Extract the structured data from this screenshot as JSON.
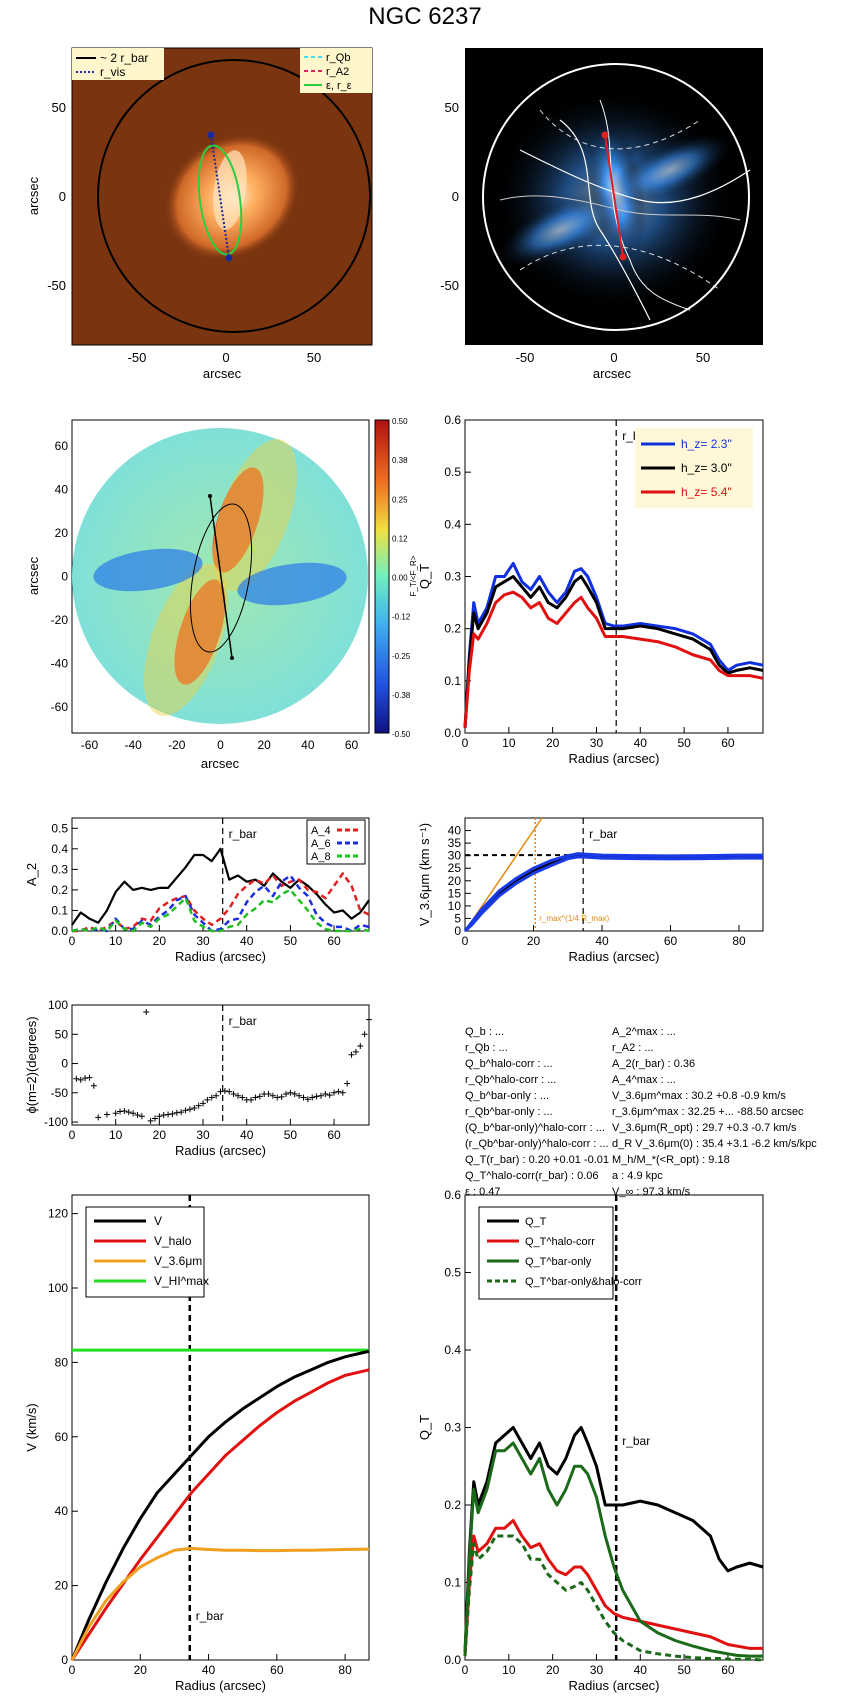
{
  "figure": {
    "title": "NGC 6237"
  },
  "panels": {
    "image": {
      "xlabel": "arcsec",
      "ylabel": "arcsec",
      "xticks": [
        "-50",
        "0",
        "50"
      ],
      "yticks": [
        "50",
        "0",
        "-50"
      ],
      "legend_left": [
        "~ 2 r_bar",
        "r_vis"
      ],
      "legend_right": [
        "r_Qb",
        "r_A2",
        "ε, r_ε"
      ],
      "colors": {
        "background": "#7a3410",
        "galaxy": "#ff9a50",
        "ellipse": "#2ecc40",
        "circle": "#000000",
        "bar_line": "#1b2a9a"
      }
    },
    "contour": {
      "xlabel": "arcsec",
      "xticks": [
        "-50",
        "0",
        "50"
      ],
      "yticks": [
        "50",
        "0",
        "-50"
      ],
      "colors": {
        "background": "#000000",
        "flux": "#3a8ef0",
        "circle": "#ffffff",
        "bar_line": "#e02020"
      }
    },
    "forcemap": {
      "xlabel": "arcsec",
      "ylabel": "arcsec",
      "xticks": [
        "-60",
        "-40",
        "-20",
        "0",
        "20",
        "40",
        "60"
      ],
      "yticks": [
        "60",
        "40",
        "20",
        "0",
        "-20",
        "-40",
        "-60"
      ],
      "colorbar_ticks": [
        "0.50",
        "0.38",
        "0.25",
        "0.12",
        "0.00",
        "-0.12",
        "-0.25",
        "-0.38",
        "-0.50"
      ],
      "colorbar_label": "F_T/<F_R>"
    },
    "rotcurve": {
      "xlabel": "Radius (arcsec)",
      "ylabel": "V_3.6μm (km s⁻¹)",
      "rbar_label": "r_bar",
      "rmax_label": "r_max^(1/4 R_max)"
    },
    "paramtext": {
      "col1": [
        "Q_b : ...",
        "r_Qb : ...",
        "Q_b^halo-corr : ...",
        "r_Qb^halo-corr : ...",
        "Q_b^bar-only : ...",
        "r_Qb^bar-only : ...",
        "(Q_b^bar-only)^halo-corr : ...",
        "(r_Qb^bar-only)^halo-corr : ...",
        "Q_T(r_bar) : 0.20 +0.01 -0.01",
        "Q_T^halo-corr(r_bar) : 0.06",
        "ε : 0.47"
      ],
      "col2": [
        "A_2^max : ...",
        "r_A2 : ...",
        "A_2(r_bar) : 0.36",
        "A_4^max : ...",
        "V_3.6μm^max : 30.2 +0.8 -0.9 km/s",
        "r_3.6μm^max : 32.25 +... -88.50 arcsec",
        "V_3.6μm(R_opt) : 29.7 +0.3 -0.7 km/s",
        "d_R V_3.6μm(0) : 35.4 +3.1 -6.2 km/s/kpc",
        "M_h/M_*(<R_opt) : 9.18",
        "a : 4.9 kpc",
        "V_∞ : 97.3 km/s"
      ]
    }
  },
  "chart_data": [
    {
      "type": "line",
      "panel": "QT profile",
      "xlabel": "Radius (arcsec)",
      "ylabel": "Q_T",
      "xlim": [
        0,
        68
      ],
      "ylim": [
        0,
        0.6
      ],
      "xticks": [
        0,
        10,
        20,
        30,
        40,
        50,
        60
      ],
      "yticks": [
        0.0,
        0.1,
        0.2,
        0.3,
        0.4,
        0.5,
        0.6
      ],
      "vline": {
        "x": 34.5,
        "label": "r_bar"
      },
      "legend": [
        "h_z= 2.3''",
        "h_z= 3.0''",
        "h_z= 5.4''"
      ],
      "x": [
        0,
        1,
        2,
        3,
        5,
        7,
        9,
        11,
        13,
        15,
        17,
        19,
        21,
        23,
        25,
        26.5,
        28,
        30,
        32,
        34,
        36,
        40,
        44,
        48,
        52,
        56,
        58,
        60,
        62,
        65,
        68
      ],
      "series": [
        {
          "name": "h_z= 2.3''",
          "color": "#1030e0",
          "values": [
            0.01,
            0.15,
            0.25,
            0.21,
            0.24,
            0.3,
            0.3,
            0.325,
            0.29,
            0.275,
            0.3,
            0.27,
            0.25,
            0.27,
            0.31,
            0.315,
            0.3,
            0.26,
            0.21,
            0.205,
            0.205,
            0.21,
            0.205,
            0.2,
            0.19,
            0.17,
            0.14,
            0.12,
            0.13,
            0.135,
            0.13
          ]
        },
        {
          "name": "h_z= 3.0''",
          "color": "#000000",
          "values": [
            0.01,
            0.14,
            0.23,
            0.2,
            0.23,
            0.28,
            0.29,
            0.3,
            0.28,
            0.26,
            0.28,
            0.25,
            0.24,
            0.26,
            0.29,
            0.3,
            0.28,
            0.25,
            0.2,
            0.2,
            0.2,
            0.205,
            0.2,
            0.19,
            0.18,
            0.16,
            0.13,
            0.115,
            0.12,
            0.125,
            0.12
          ]
        },
        {
          "name": "h_z= 5.4''",
          "color": "#e01010",
          "values": [
            0.01,
            0.12,
            0.19,
            0.18,
            0.21,
            0.25,
            0.265,
            0.27,
            0.26,
            0.24,
            0.25,
            0.22,
            0.21,
            0.23,
            0.25,
            0.26,
            0.24,
            0.22,
            0.185,
            0.185,
            0.185,
            0.18,
            0.175,
            0.165,
            0.15,
            0.14,
            0.12,
            0.11,
            0.11,
            0.11,
            0.105
          ]
        }
      ]
    },
    {
      "type": "line",
      "panel": "Fourier amplitudes",
      "xlabel": "Radius (arcsec)",
      "ylabel": "A_2",
      "xlim": [
        0,
        68
      ],
      "ylim": [
        0,
        0.55
      ],
      "xticks": [
        0,
        10,
        20,
        30,
        40,
        50,
        60
      ],
      "yticks": [
        0.0,
        0.1,
        0.2,
        0.3,
        0.4,
        0.5
      ],
      "vline": {
        "x": 34.5,
        "label": "r_bar"
      },
      "legend": [
        "A_4",
        "A_6",
        "A_8"
      ],
      "x": [
        0,
        2,
        4,
        6,
        8,
        10,
        12,
        14,
        16,
        18,
        20,
        22,
        24,
        26,
        28,
        30,
        32,
        34,
        36,
        38,
        40,
        42,
        44,
        46,
        48,
        50,
        52,
        54,
        56,
        58,
        60,
        62,
        64,
        66,
        68
      ],
      "series": [
        {
          "name": "A_2",
          "color": "#000000",
          "values": [
            0.03,
            0.09,
            0.06,
            0.04,
            0.1,
            0.19,
            0.24,
            0.2,
            0.21,
            0.2,
            0.21,
            0.21,
            0.26,
            0.31,
            0.37,
            0.37,
            0.34,
            0.4,
            0.25,
            0.27,
            0.24,
            0.25,
            0.22,
            0.28,
            0.24,
            0.21,
            0.25,
            0.22,
            0.18,
            0.13,
            0.09,
            0.1,
            0.06,
            0.09,
            0.15
          ]
        },
        {
          "name": "A_4",
          "color": "#e02020",
          "values": [
            0.0,
            0.0,
            0.02,
            0.0,
            0.02,
            0.05,
            0.01,
            0.02,
            0.06,
            0.05,
            0.11,
            0.14,
            0.16,
            0.17,
            0.1,
            0.06,
            0.03,
            0.06,
            0.11,
            0.18,
            0.22,
            0.25,
            0.23,
            0.27,
            0.22,
            0.24,
            0.25,
            0.2,
            0.19,
            0.16,
            0.22,
            0.28,
            0.22,
            0.1,
            0.08
          ]
        },
        {
          "name": "A_6",
          "color": "#1a30e0",
          "values": [
            0.0,
            0.01,
            0.0,
            0.01,
            0.0,
            0.06,
            0.01,
            0.01,
            0.05,
            0.03,
            0.07,
            0.1,
            0.15,
            0.17,
            0.08,
            0.04,
            0.0,
            0.01,
            0.05,
            0.06,
            0.14,
            0.19,
            0.22,
            0.17,
            0.24,
            0.27,
            0.21,
            0.17,
            0.08,
            0.04,
            0.02,
            0.02,
            0.0,
            0.03,
            0.02
          ]
        },
        {
          "name": "A_8",
          "color": "#20c020",
          "values": [
            0.0,
            0.01,
            0.0,
            0.02,
            0.0,
            0.05,
            0.01,
            0.0,
            0.04,
            0.02,
            0.06,
            0.08,
            0.12,
            0.16,
            0.05,
            0.02,
            0.0,
            0.0,
            0.02,
            0.03,
            0.08,
            0.11,
            0.15,
            0.14,
            0.18,
            0.2,
            0.15,
            0.1,
            0.04,
            0.01,
            0.0,
            0.0,
            0.0,
            0.01,
            0.0
          ]
        }
      ]
    },
    {
      "type": "line",
      "panel": "Rotation curve 3.6um",
      "xlabel": "Radius (arcsec)",
      "ylabel": "V_3.6μm (km s⁻¹)",
      "xlim": [
        0,
        87
      ],
      "ylim": [
        0,
        45
      ],
      "xticks": [
        0,
        20,
        40,
        60,
        80
      ],
      "yticks": [
        0,
        5,
        10,
        15,
        20,
        25,
        30,
        35,
        40
      ],
      "vline": {
        "x": 34.5,
        "label": "r_bar"
      },
      "x": [
        0,
        2,
        5,
        10,
        15,
        20,
        25,
        30,
        33,
        35,
        40,
        50,
        60,
        70,
        80,
        87
      ],
      "series": [
        {
          "name": "V_3.6μm",
          "color": "#000000",
          "values": [
            0,
            3,
            8,
            15,
            20,
            24,
            27,
            29.5,
            30.2,
            30,
            29.5,
            29.3,
            29.2,
            29.3,
            29.5,
            29.6
          ]
        },
        {
          "name": "upper",
          "color": "#1a3ae8",
          "values": [
            0,
            3.5,
            8.8,
            16,
            21,
            25,
            28,
            30,
            30.8,
            30.6,
            30.2,
            30,
            29.9,
            30,
            30.2,
            30.2
          ]
        },
        {
          "name": "lower",
          "color": "#1a3ae8",
          "values": [
            0,
            2.5,
            7.2,
            14,
            19,
            23,
            26,
            28.8,
            29.5,
            29.4,
            29,
            28.8,
            28.7,
            28.8,
            29,
            29
          ]
        }
      ],
      "dashed_hline": 30.2,
      "rmax_line": 20.5,
      "tangent_slope": 2.0
    },
    {
      "type": "scatter",
      "panel": "Phase",
      "xlabel": "Radius (arcsec)",
      "ylabel": "ϕ(m=2)(degrees)",
      "xlim": [
        0,
        68
      ],
      "ylim": [
        -105,
        100
      ],
      "xticks": [
        0,
        10,
        20,
        30,
        40,
        50,
        60
      ],
      "yticks": [
        -100,
        -50,
        0,
        50,
        100
      ],
      "vline": {
        "x": 34.5,
        "label": "r_bar"
      },
      "x": [
        1,
        2,
        3,
        4,
        5,
        6,
        8,
        10,
        11,
        12,
        13,
        14,
        15,
        16,
        17,
        18,
        19,
        20,
        21,
        22,
        23,
        24,
        25,
        26,
        27,
        28,
        29,
        30,
        31,
        32,
        33,
        34,
        35,
        36,
        37,
        38,
        39,
        40,
        41,
        42,
        43,
        44,
        45,
        46,
        47,
        48,
        49,
        50,
        51,
        52,
        53,
        54,
        55,
        56,
        57,
        58,
        59,
        60,
        61,
        62,
        63,
        64,
        65,
        66,
        67,
        68
      ],
      "y": [
        -26,
        -28,
        -25,
        -24,
        -38,
        -92,
        -87,
        -85,
        -82,
        -81,
        -83,
        -85,
        -88,
        -90,
        88,
        -98,
        -94,
        -90,
        -88,
        -87,
        -86,
        -84,
        -83,
        -80,
        -78,
        -76,
        -72,
        -68,
        -62,
        -58,
        -55,
        -48,
        -47,
        -48,
        -52,
        -55,
        -58,
        -62,
        -62,
        -58,
        -56,
        -52,
        -52,
        -55,
        -58,
        -57,
        -52,
        -50,
        -52,
        -55,
        -58,
        -61,
        -58,
        -56,
        -55,
        -52,
        -54,
        -50,
        -48,
        -50,
        -34,
        15,
        20,
        30,
        50,
        75
      ]
    },
    {
      "type": "line",
      "panel": "Rotation decomposition",
      "xlabel": "Radius (arcsec)",
      "ylabel": "V (km/s)",
      "xlim": [
        0,
        87
      ],
      "ylim": [
        0,
        125
      ],
      "xticks": [
        0,
        20,
        40,
        60,
        80
      ],
      "yticks": [
        0,
        20,
        40,
        60,
        80,
        100,
        120
      ],
      "vline": {
        "x": 34.5,
        "label": "r_bar"
      },
      "legend": [
        "V",
        "V_halo",
        "V_3.6μm",
        "V_HI^max"
      ],
      "x": [
        0,
        5,
        10,
        15,
        20,
        25,
        30,
        35,
        40,
        45,
        50,
        55,
        60,
        65,
        70,
        75,
        80,
        87
      ],
      "series": [
        {
          "name": "V",
          "color": "#000000",
          "values": [
            0,
            11,
            21,
            30,
            38,
            45,
            50,
            55,
            60,
            64,
            67.5,
            70.5,
            73.5,
            76,
            78,
            80,
            81.5,
            83
          ]
        },
        {
          "name": "V_halo",
          "color": "#e01010",
          "values": [
            0,
            7,
            14,
            20.5,
            27,
            33,
            39,
            45,
            50,
            55,
            59,
            63,
            66.5,
            69.5,
            72,
            74.5,
            76.5,
            78
          ]
        },
        {
          "name": "V_3.6μm",
          "color": "#f0a020",
          "values": [
            0,
            9,
            16,
            21,
            25,
            27.5,
            29.5,
            30,
            29.7,
            29.5,
            29.5,
            29.4,
            29.4,
            29.5,
            29.5,
            29.6,
            29.7,
            29.8
          ]
        }
      ],
      "hline": {
        "name": "V_HI^max",
        "color": "#22dd22",
        "value": 83.3
      }
    },
    {
      "type": "line",
      "panel": "QT corrections",
      "xlabel": "Radius (arcsec)",
      "ylabel": "Q_T",
      "xlim": [
        0,
        68
      ],
      "ylim": [
        0,
        0.6
      ],
      "xticks": [
        0,
        10,
        20,
        30,
        40,
        50,
        60
      ],
      "yticks": [
        0.0,
        0.1,
        0.2,
        0.3,
        0.4,
        0.5,
        0.6
      ],
      "vline": {
        "x": 34.5,
        "label": "r_bar"
      },
      "legend": [
        "Q_T",
        "Q_T^halo-corr",
        "Q_T^bar-only",
        "Q_T^bar-only&halo-corr"
      ],
      "x": [
        0,
        1,
        2,
        3,
        5,
        7,
        9,
        11,
        13,
        15,
        17,
        19,
        21,
        23,
        25,
        26.5,
        28,
        30,
        32,
        34,
        36,
        40,
        44,
        48,
        52,
        56,
        58,
        60,
        62,
        65,
        68
      ],
      "series": [
        {
          "name": "Q_T",
          "color": "#000000",
          "dashed": false,
          "values": [
            0.01,
            0.14,
            0.23,
            0.2,
            0.23,
            0.28,
            0.29,
            0.3,
            0.28,
            0.26,
            0.28,
            0.25,
            0.24,
            0.26,
            0.29,
            0.3,
            0.28,
            0.25,
            0.2,
            0.2,
            0.2,
            0.205,
            0.2,
            0.19,
            0.18,
            0.16,
            0.13,
            0.115,
            0.12,
            0.125,
            0.12
          ]
        },
        {
          "name": "Q_T^halo-corr",
          "color": "#e01010",
          "dashed": false,
          "values": [
            0.005,
            0.1,
            0.16,
            0.14,
            0.15,
            0.17,
            0.17,
            0.18,
            0.16,
            0.145,
            0.15,
            0.13,
            0.115,
            0.11,
            0.12,
            0.12,
            0.11,
            0.09,
            0.07,
            0.06,
            0.055,
            0.05,
            0.045,
            0.04,
            0.035,
            0.03,
            0.025,
            0.02,
            0.018,
            0.015,
            0.015
          ]
        },
        {
          "name": "Q_T^bar-only",
          "color": "#1a6a1a",
          "dashed": false,
          "values": [
            0.01,
            0.13,
            0.22,
            0.19,
            0.22,
            0.27,
            0.27,
            0.28,
            0.26,
            0.24,
            0.26,
            0.22,
            0.2,
            0.22,
            0.25,
            0.25,
            0.24,
            0.21,
            0.16,
            0.12,
            0.09,
            0.05,
            0.035,
            0.025,
            0.018,
            0.012,
            0.01,
            0.008,
            0.006,
            0.005,
            0.005
          ]
        },
        {
          "name": "Q_T^bar-only&halo-corr",
          "color": "#1a6a1a",
          "dashed": true,
          "values": [
            0.005,
            0.09,
            0.15,
            0.13,
            0.14,
            0.16,
            0.16,
            0.16,
            0.15,
            0.13,
            0.13,
            0.11,
            0.1,
            0.09,
            0.095,
            0.1,
            0.09,
            0.07,
            0.05,
            0.035,
            0.025,
            0.012,
            0.008,
            0.005,
            0.003,
            0.002,
            0.002,
            0.001,
            0.001,
            0.001,
            0.0
          ]
        }
      ]
    }
  ]
}
